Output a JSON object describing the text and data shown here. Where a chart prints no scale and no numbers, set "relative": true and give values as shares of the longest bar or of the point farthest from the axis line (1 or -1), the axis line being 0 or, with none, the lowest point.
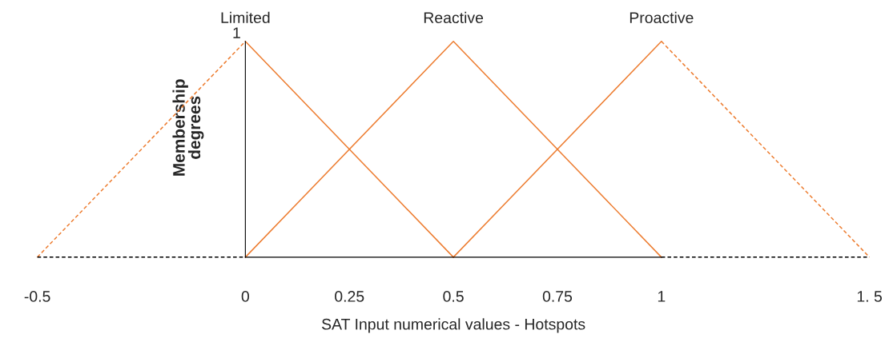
{
  "chart_data": {
    "type": "line",
    "xlabel": "SAT Input numerical values - Hotspots",
    "ylabel": "Membership\ndegrees",
    "series": [
      {
        "name": "Limited",
        "color": "#ed7d31",
        "x": [
          0,
          0.5
        ],
        "values": [
          1,
          0
        ],
        "line_style": "solid"
      },
      {
        "color": "#ed7d31",
        "x": [
          -0.5,
          0
        ],
        "values": [
          0,
          1
        ],
        "line_style": "dashed"
      },
      {
        "name": "Reactive",
        "color": "#ed7d31",
        "x": [
          0,
          0.5,
          1
        ],
        "values": [
          0,
          1,
          0
        ],
        "line_style": "solid"
      },
      {
        "name": "Proactive",
        "color": "#ed7d31",
        "x": [
          0.5,
          1
        ],
        "values": [
          0,
          1
        ],
        "line_style": "solid"
      },
      {
        "color": "#ed7d31",
        "x": [
          1,
          1.5
        ],
        "values": [
          1,
          0
        ],
        "line_style": "dashed"
      },
      {
        "color": "#000000",
        "x": [
          -0.5,
          0
        ],
        "values": [
          0,
          0
        ],
        "line_style": "dashed"
      },
      {
        "color": "#000000",
        "x": [
          1,
          1.5
        ],
        "values": [
          0,
          0
        ],
        "line_style": "dashed"
      }
    ],
    "xlim": [
      -0.5,
      1.5
    ],
    "relative": true,
    "annotations": [
      {
        "text": "1",
        "x": 0,
        "y": 1
      }
    ],
    "xticks": [
      -0.5,
      0,
      0.25,
      0.5,
      0.75,
      1,
      {
        "value": 1.5,
        "label": "1. 5"
      }
    ],
    "grid": false,
    "legend": false,
    "marker": "none"
  }
}
